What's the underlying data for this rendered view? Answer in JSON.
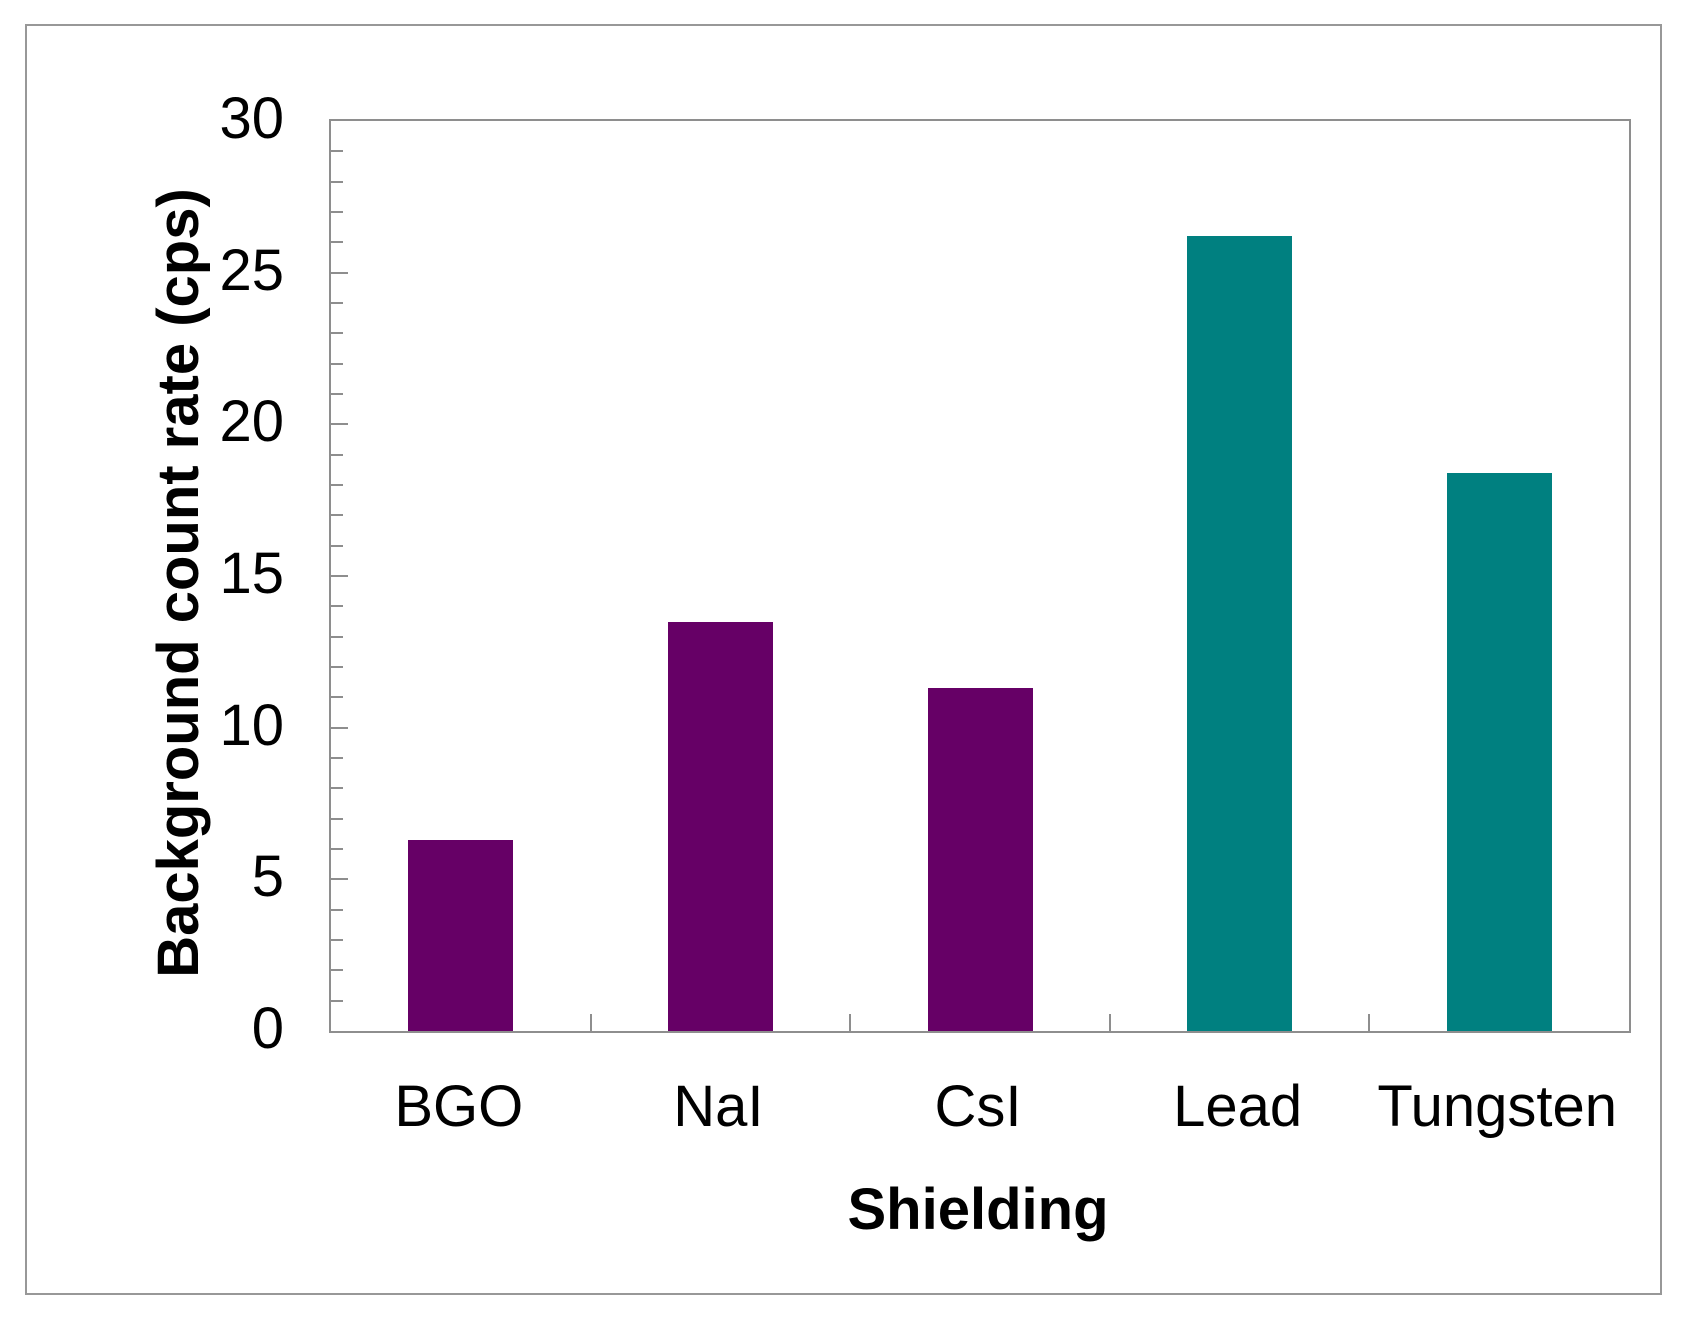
{
  "chart_data": {
    "type": "bar",
    "title": "",
    "categories": [
      "BGO",
      "NaI",
      "CsI",
      "Lead",
      "Tungsten"
    ],
    "values": [
      6.3,
      13.5,
      11.3,
      26.2,
      18.4
    ],
    "bar_colors": [
      "#660066",
      "#660066",
      "#660066",
      "#008080",
      "#008080"
    ],
    "xlabel": "Shielding",
    "ylabel": "Background count rate (cps)",
    "ylim": [
      0,
      30
    ],
    "y_tick_labels": [
      "0",
      "5",
      "10",
      "15",
      "20",
      "25",
      "30"
    ],
    "y_major_tick_step": 5,
    "y_minor_tick_step": 1,
    "grid": false,
    "legend": false
  },
  "colors": {
    "purple_series": "#660066",
    "teal_series": "#008080",
    "axis": "#8e8e8e",
    "frame_border": "#989898",
    "text": "#000000",
    "background": "#ffffff"
  }
}
